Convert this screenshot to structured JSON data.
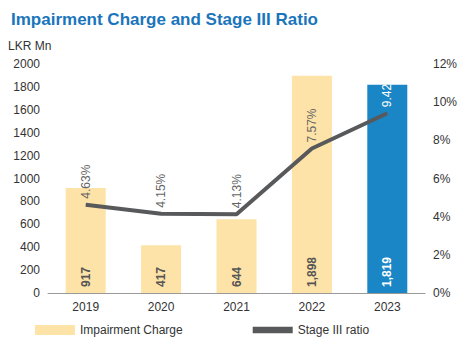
{
  "chart_data": {
    "type": "bar",
    "title": "Impairment Charge and Stage III Ratio",
    "y_label": "LKR Mn",
    "categories": [
      "2019",
      "2020",
      "2021",
      "2022",
      "2023"
    ],
    "series": [
      {
        "name": "Impairment Charge",
        "type": "bar",
        "colors": [
          "#fde3a7",
          "#fde3a7",
          "#fde3a7",
          "#fde3a7",
          "#1b86c6"
        ],
        "values": [
          917,
          417,
          644,
          1898,
          1819
        ],
        "value_labels": [
          "917",
          "417",
          "644",
          "1,898",
          "1,819"
        ]
      },
      {
        "name": "Stage III ratio",
        "type": "line",
        "axis": "y2",
        "color": "#58595b",
        "values": [
          4.63,
          4.15,
          4.13,
          7.57,
          9.42
        ],
        "value_labels": [
          "4.63%",
          "4.15%",
          "4.13%",
          "7.57%",
          "9.42%"
        ]
      }
    ],
    "ylim": [
      0,
      2000
    ],
    "yticks": [
      0,
      200,
      400,
      600,
      800,
      1000,
      1200,
      1400,
      1600,
      1800,
      2000
    ],
    "y2lim": [
      0,
      12
    ],
    "y2ticks": [
      {
        "value": 0,
        "label": "0%"
      },
      {
        "value": 2,
        "label": "2%"
      },
      {
        "value": 4,
        "label": "4%"
      },
      {
        "value": 6,
        "label": "6%"
      },
      {
        "value": 8,
        "label": "8%"
      },
      {
        "value": 10,
        "label": "10%"
      },
      {
        "value": 12,
        "label": "12%"
      }
    ],
    "grid": false,
    "legend": "bottom",
    "data_labels": true
  }
}
